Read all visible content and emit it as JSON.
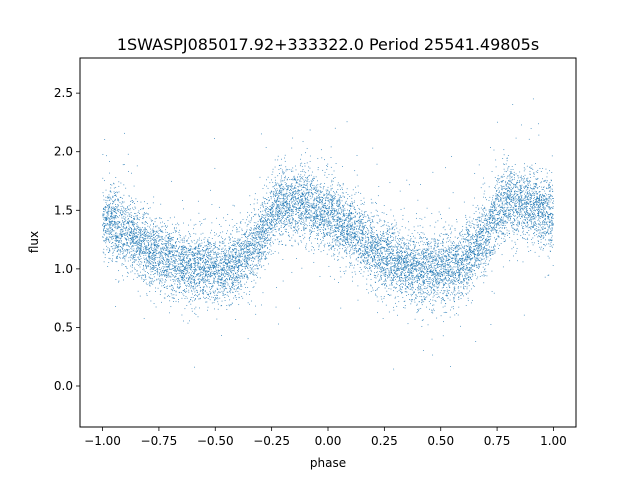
{
  "chart_data": {
    "type": "scatter",
    "title": "1SWASPJ085017.92+333322.0 Period 25541.49805s",
    "xlabel": "phase",
    "ylabel": "flux",
    "xlim": [
      -1.1,
      1.1
    ],
    "ylim": [
      -0.35,
      2.8
    ],
    "xticks": [
      -1.0,
      -0.75,
      -0.5,
      -0.25,
      0.0,
      0.25,
      0.5,
      0.75,
      1.0
    ],
    "xtick_labels": [
      "−1.00",
      "−0.75",
      "−0.50",
      "−0.25",
      "0.00",
      "0.25",
      "0.50",
      "0.75",
      "1.00"
    ],
    "yticks": [
      0.0,
      0.5,
      1.0,
      1.5,
      2.0,
      2.5
    ],
    "ytick_labels": [
      "0.0",
      "0.5",
      "1.0",
      "1.5",
      "2.0",
      "2.5"
    ],
    "grid": false,
    "series": [
      {
        "color": "#1f77b4",
        "marker_size": "very small",
        "x_range": [
          -1.0,
          1.0
        ],
        "profile_x": [
          -1.0,
          -0.9,
          -0.8,
          -0.7,
          -0.6,
          -0.5,
          -0.4,
          -0.3,
          -0.25,
          -0.2,
          -0.1,
          0.0,
          0.1,
          0.2,
          0.3,
          0.4,
          0.5,
          0.6,
          0.7,
          0.75,
          0.8,
          0.9,
          1.0
        ],
        "profile_y": [
          1.42,
          1.32,
          1.18,
          1.07,
          1.01,
          0.99,
          1.03,
          1.25,
          1.48,
          1.57,
          1.56,
          1.46,
          1.33,
          1.17,
          1.06,
          1.0,
          0.99,
          1.04,
          1.3,
          1.5,
          1.56,
          1.55,
          1.45
        ],
        "scatter_sigma": 0.15,
        "n_points": 12000
      }
    ]
  }
}
